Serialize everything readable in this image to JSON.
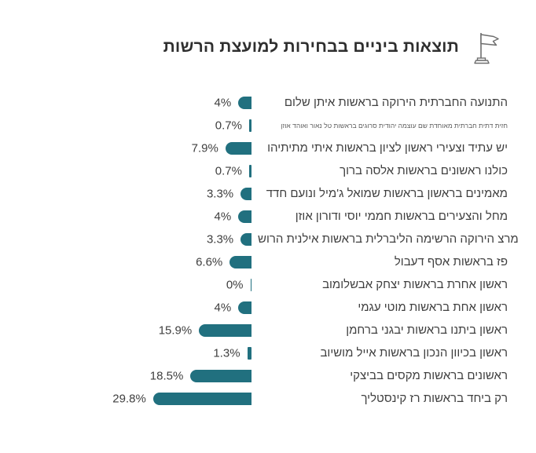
{
  "title": "תוצאות ביניים בבחירות למועצת הרשות",
  "colors": {
    "bar": "#21707f",
    "label_text": "#3f3f3f",
    "title_text": "#2f2f2f",
    "flag_icon_stroke": "#6f6f6f"
  },
  "chart_data": {
    "type": "bar",
    "orientation": "horizontal",
    "direction": "rtl",
    "title": "תוצאות ביניים בבחירות למועצת הרשות",
    "xlabel": "",
    "ylabel": "",
    "xlim": [
      0,
      30
    ],
    "grid": false,
    "legend": false,
    "bar_color": "#21707f",
    "categories": [
      "התנועה החברתית הירוקה בראשות איתן שלום",
      "חזית דתית חברתית מאוחדת שם עוצמה יהודית סרוגים בראשות טל נאור ואוהד אוזן",
      "יש עתיד וצעירי ראשון לציון בראשות איתי מתיתיהו",
      "כולנו ראשונים בראשות אלסה ברוך",
      "מאמינים בראשון בראשות שמואל ג'מיל ונועם חדד",
      "מחל והצעירים בראשות חממי יוסי ודורון אוזן",
      "מרצ הירוקה הרשימה הליברלית בראשות אילנית הרוש",
      "פז בראשות אסף דעבול",
      "ראשון אחרת בראשות יצחק אבשלומוב",
      "ראשון אחת בראשות מוטי עגמי",
      "ראשון ביתנו בראשות יבגני ברחמן",
      "ראשון בכיוון הנכון בראשות אייל מושיוב",
      "ראשונים בראשות מקסים בביצקי",
      "רק ביחד בראשות רז קינסטליך"
    ],
    "values": [
      4,
      0.7,
      7.9,
      0.7,
      3.3,
      4,
      3.3,
      6.6,
      0,
      4,
      15.9,
      1.3,
      18.5,
      29.8
    ],
    "value_labels": [
      "4%",
      "0.7%",
      "7.9%",
      "0.7%",
      "3.3%",
      "4%",
      "3.3%",
      "6.6%",
      "0%",
      "4%",
      "15.9%",
      "1.3%",
      "18.5%",
      "29.8%"
    ],
    "small_font_category_indexes": [
      1
    ]
  }
}
